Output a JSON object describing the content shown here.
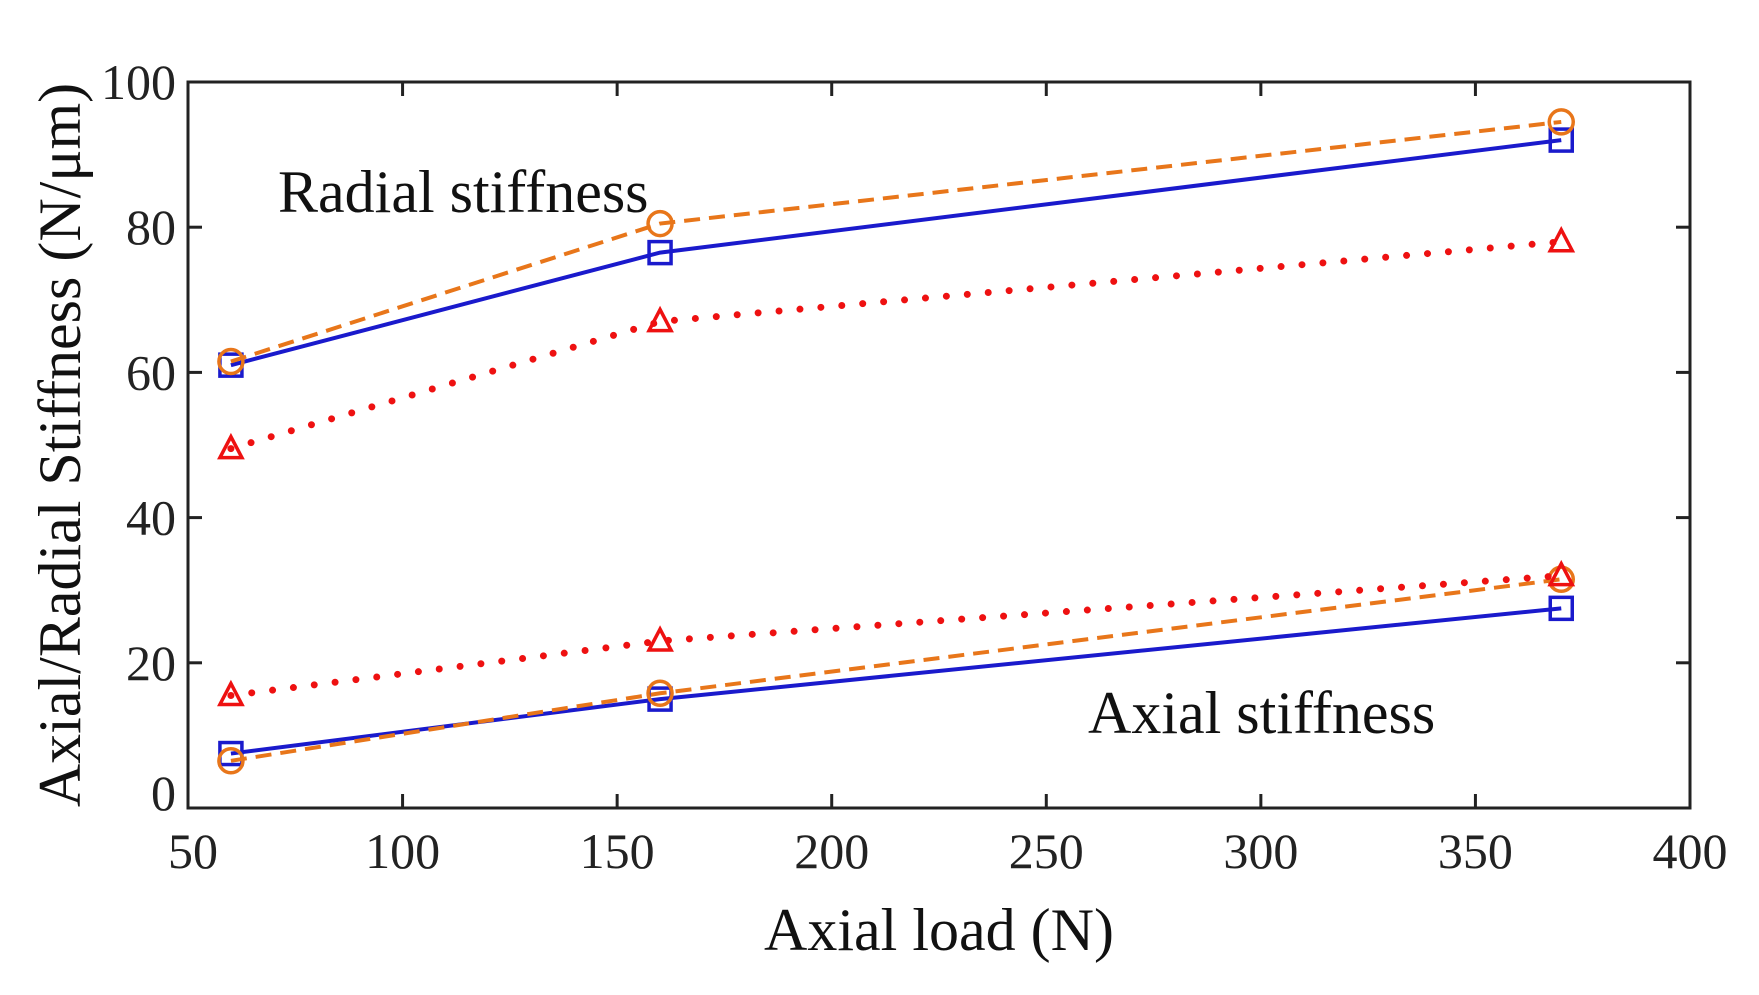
{
  "chart_data": {
    "type": "line",
    "title": "",
    "xlabel": "Axial load (N)",
    "ylabel": "Axial/Radial Stiffness (N/μm)",
    "xlim": [
      50,
      400
    ],
    "ylim": [
      0,
      100
    ],
    "xticks": [
      50,
      100,
      150,
      200,
      250,
      300,
      350,
      400
    ],
    "yticks": [
      0,
      20,
      40,
      60,
      80,
      100
    ],
    "grid": false,
    "annotations": {
      "radial": "Radial stiffness",
      "axial": "Axial stiffness"
    },
    "series": [
      {
        "id": "radial-square",
        "group": "radial",
        "marker": "square",
        "style": "solid",
        "color": "#1a1acc",
        "x": [
          60,
          160,
          370
        ],
        "y": [
          61,
          76.5,
          92
        ]
      },
      {
        "id": "radial-circle",
        "group": "radial",
        "marker": "circle",
        "style": "dashed",
        "color": "#e8761a",
        "x": [
          60,
          160,
          370
        ],
        "y": [
          61.5,
          80.5,
          94.5
        ]
      },
      {
        "id": "radial-triangle",
        "group": "radial",
        "marker": "triangle",
        "style": "dotted",
        "color": "#ee1111",
        "x": [
          60,
          160,
          370
        ],
        "y": [
          49.5,
          67,
          78
        ]
      },
      {
        "id": "axial-square",
        "group": "axial",
        "marker": "square",
        "style": "solid",
        "color": "#1a1acc",
        "x": [
          60,
          160,
          370
        ],
        "y": [
          7.5,
          15,
          27.5
        ]
      },
      {
        "id": "axial-circle",
        "group": "axial",
        "marker": "circle",
        "style": "dashed",
        "color": "#e8761a",
        "x": [
          60,
          160,
          370
        ],
        "y": [
          6.5,
          15.8,
          31.5
        ]
      },
      {
        "id": "axial-triangle",
        "group": "axial",
        "marker": "triangle",
        "style": "dotted",
        "color": "#ee1111",
        "x": [
          60,
          160,
          370
        ],
        "y": [
          15.5,
          23,
          32
        ]
      }
    ]
  }
}
